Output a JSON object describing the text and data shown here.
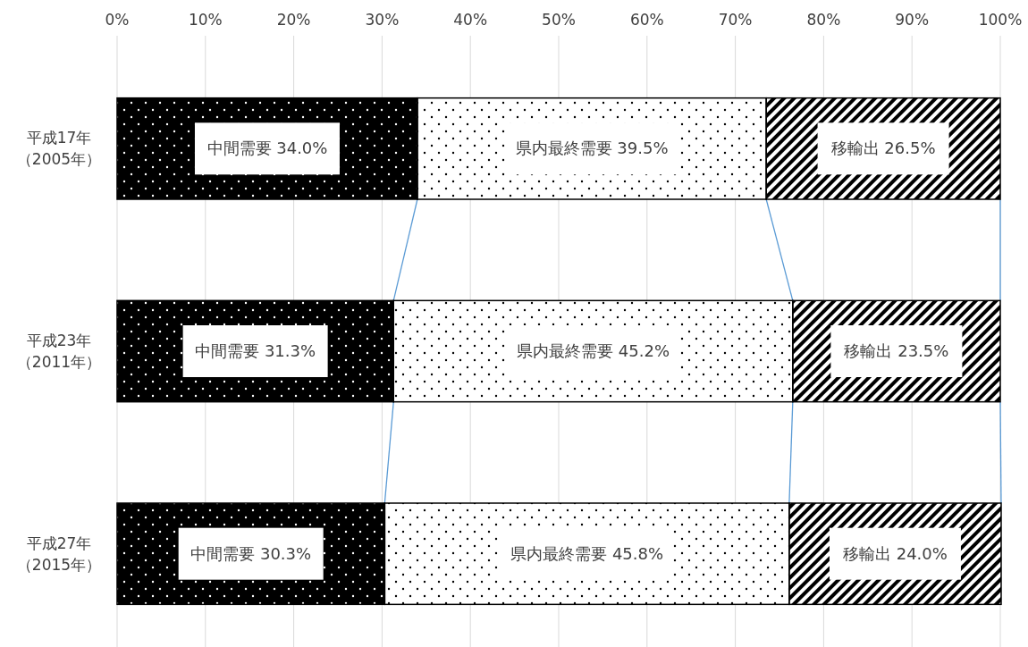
{
  "chart_data": {
    "type": "bar",
    "orientation": "horizontal",
    "stacked": true,
    "categories": [
      "平成17年（2005年）",
      "平成23年（2011年）",
      "平成27年（2015年）"
    ],
    "series": [
      {
        "color": "#000000",
        "values": [
          34.0,
          31.3,
          30.3
        ],
        "value_labels": [
          "中間需要 34.0%",
          "中間需要 31.3%",
          "中間需要 30.3%"
        ]
      },
      {
        "color": "#ffffff",
        "values": [
          39.5,
          45.2,
          45.8
        ],
        "value_labels": [
          "県内最終需要 39.5%",
          "県内最終需要 45.2%",
          "県内最終需要 45.8%"
        ]
      },
      {
        "color": "#808080",
        "values": [
          26.5,
          23.5,
          24.0
        ],
        "value_labels": [
          "移輸出 26.5%",
          "移輸出 23.5%",
          "移輸出 24.0%"
        ]
      }
    ],
    "xlim": [
      0,
      100
    ],
    "xticks": [
      {
        "value": 0,
        "label": "0%"
      },
      {
        "value": 10,
        "label": "10%"
      },
      {
        "value": 20,
        "label": "20%"
      },
      {
        "value": 30,
        "label": "30%"
      },
      {
        "value": 40,
        "label": "40%"
      },
      {
        "value": 50,
        "label": "50%"
      },
      {
        "value": 60,
        "label": "60%"
      },
      {
        "value": 70,
        "label": "70%"
      },
      {
        "value": 80,
        "label": "80%"
      },
      {
        "value": 90,
        "label": "90%"
      },
      {
        "value": 100,
        "label": "100%"
      }
    ],
    "grid": "x",
    "legend": false
  }
}
